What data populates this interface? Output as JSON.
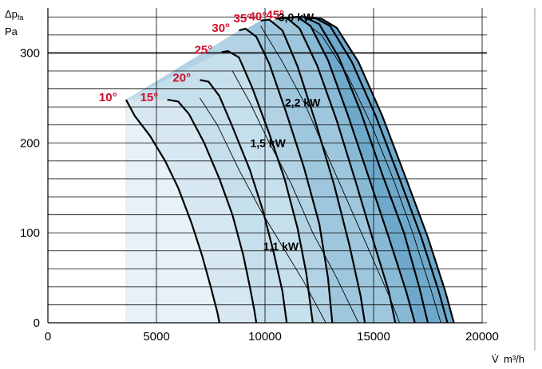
{
  "chart_data": {
    "type": "line",
    "ylabel": "Δp",
    "ylabel_sub": "fa",
    "yunit": "Pa",
    "xlabel": "V̇",
    "xunit": "m³/h",
    "xlim": [
      0,
      20000
    ],
    "ylim": [
      0,
      350
    ],
    "xticks": [
      "0",
      "5000",
      "10000",
      "15000",
      "20000"
    ],
    "yticks": [
      "0",
      "100",
      "200",
      "300"
    ],
    "grid": true,
    "band_colors": [
      "#e6f1f8",
      "#d7e8f2",
      "#c6dfec",
      "#b3d3e5",
      "#9ec7dd",
      "#88bad5",
      "#6ea9cb"
    ],
    "blade_angle_curves": [
      {
        "name": "10°",
        "label": "10°",
        "points": [
          [
            3600,
            248
          ],
          [
            4000,
            230
          ],
          [
            4700,
            208
          ],
          [
            5400,
            180
          ],
          [
            6000,
            150
          ],
          [
            6600,
            112
          ],
          [
            7100,
            75
          ],
          [
            7500,
            40
          ],
          [
            7800,
            12
          ],
          [
            7900,
            0
          ]
        ]
      },
      {
        "name": "15°",
        "label": "15°",
        "points": [
          [
            5500,
            248
          ],
          [
            6000,
            246
          ],
          [
            6500,
            232
          ],
          [
            7200,
            200
          ],
          [
            7900,
            160
          ],
          [
            8500,
            120
          ],
          [
            9000,
            75
          ],
          [
            9300,
            40
          ],
          [
            9500,
            15
          ],
          [
            9600,
            0
          ]
        ]
      },
      {
        "name": "20°",
        "label": "20°",
        "points": [
          [
            7000,
            270
          ],
          [
            7400,
            268
          ],
          [
            7900,
            252
          ],
          [
            8500,
            218
          ],
          [
            9300,
            170
          ],
          [
            9900,
            125
          ],
          [
            10400,
            78
          ],
          [
            10800,
            35
          ],
          [
            11000,
            0
          ]
        ]
      },
      {
        "name": "25°",
        "label": "25°",
        "points": [
          [
            8000,
            301
          ],
          [
            8300,
            302
          ],
          [
            8800,
            295
          ],
          [
            9400,
            262
          ],
          [
            10200,
            210
          ],
          [
            10900,
            160
          ],
          [
            11500,
            105
          ],
          [
            11900,
            55
          ],
          [
            12200,
            0
          ]
        ]
      },
      {
        "name": "30°",
        "label": "30°",
        "points": [
          [
            8800,
            325
          ],
          [
            9100,
            327
          ],
          [
            9600,
            318
          ],
          [
            10200,
            288
          ],
          [
            11000,
            232
          ],
          [
            11800,
            172
          ],
          [
            12500,
            110
          ],
          [
            12900,
            50
          ],
          [
            13100,
            0
          ]
        ]
      },
      {
        "name": "35°",
        "label": "35°",
        "points": [
          [
            9800,
            336
          ],
          [
            10200,
            337
          ],
          [
            10800,
            325
          ],
          [
            11500,
            285
          ],
          [
            12300,
            225
          ],
          [
            13200,
            152
          ],
          [
            13900,
            85
          ],
          [
            14400,
            30
          ],
          [
            14600,
            0
          ]
        ]
      },
      {
        "name": "40°",
        "label": "40°",
        "points": [
          [
            10500,
            338
          ],
          [
            11000,
            339
          ],
          [
            11600,
            327
          ],
          [
            12400,
            286
          ],
          [
            13300,
            225
          ],
          [
            14200,
            155
          ],
          [
            15000,
            90
          ],
          [
            15700,
            35
          ],
          [
            16000,
            0
          ]
        ]
      },
      {
        "name": "",
        "label": "",
        "points": [
          [
            11000,
            339
          ],
          [
            11500,
            340
          ],
          [
            12100,
            330
          ],
          [
            12900,
            292
          ],
          [
            13800,
            232
          ],
          [
            14800,
            160
          ],
          [
            15700,
            95
          ],
          [
            16500,
            35
          ],
          [
            16900,
            0
          ]
        ]
      },
      {
        "name": "45°",
        "label": "45°",
        "points": [
          [
            11300,
            340
          ],
          [
            11800,
            340
          ],
          [
            12500,
            332
          ],
          [
            13400,
            295
          ],
          [
            14400,
            235
          ],
          [
            15400,
            165
          ],
          [
            16400,
            100
          ],
          [
            17100,
            40
          ],
          [
            17500,
            0
          ]
        ]
      },
      {
        "name": "",
        "label": "",
        "points": [
          [
            11800,
            340
          ],
          [
            12300,
            339
          ],
          [
            13000,
            330
          ],
          [
            14000,
            290
          ],
          [
            15100,
            230
          ],
          [
            16200,
            160
          ],
          [
            17200,
            95
          ],
          [
            18000,
            35
          ],
          [
            18400,
            0
          ]
        ]
      },
      {
        "name": "",
        "label": "",
        "points": [
          [
            12000,
            339
          ],
          [
            12600,
            338
          ],
          [
            13300,
            328
          ],
          [
            14300,
            290
          ],
          [
            15400,
            230
          ],
          [
            16500,
            160
          ],
          [
            17500,
            95
          ],
          [
            18300,
            35
          ],
          [
            18700,
            0
          ]
        ]
      }
    ],
    "power_curves": [
      {
        "name": "1,1 kW",
        "label": "1,1 kW",
        "points": [
          [
            7000,
            250
          ],
          [
            7800,
            220
          ],
          [
            8800,
            170
          ],
          [
            9800,
            125
          ],
          [
            10800,
            85
          ],
          [
            11800,
            45
          ],
          [
            12800,
            0
          ]
        ]
      },
      {
        "name": "1,5 kW",
        "label": "1,5 kW",
        "points": [
          [
            8500,
            280
          ],
          [
            9300,
            245
          ],
          [
            10200,
            200
          ],
          [
            11200,
            155
          ],
          [
            12200,
            100
          ],
          [
            13300,
            50
          ],
          [
            14300,
            0
          ]
        ]
      },
      {
        "name": "2,2 kW",
        "label": "2,2 kW",
        "points": [
          [
            9800,
            330
          ],
          [
            10800,
            290
          ],
          [
            11800,
            245
          ],
          [
            12800,
            190
          ],
          [
            13800,
            135
          ],
          [
            14800,
            80
          ],
          [
            15800,
            25
          ],
          [
            16200,
            0
          ]
        ]
      },
      {
        "name": "3,0 kW",
        "label": "3,0 kW",
        "points": [
          [
            11500,
            340
          ],
          [
            12600,
            320
          ],
          [
            13800,
            275
          ],
          [
            14900,
            220
          ],
          [
            15900,
            160
          ],
          [
            16800,
            100
          ],
          [
            17600,
            40
          ],
          [
            18100,
            0
          ]
        ]
      }
    ]
  }
}
